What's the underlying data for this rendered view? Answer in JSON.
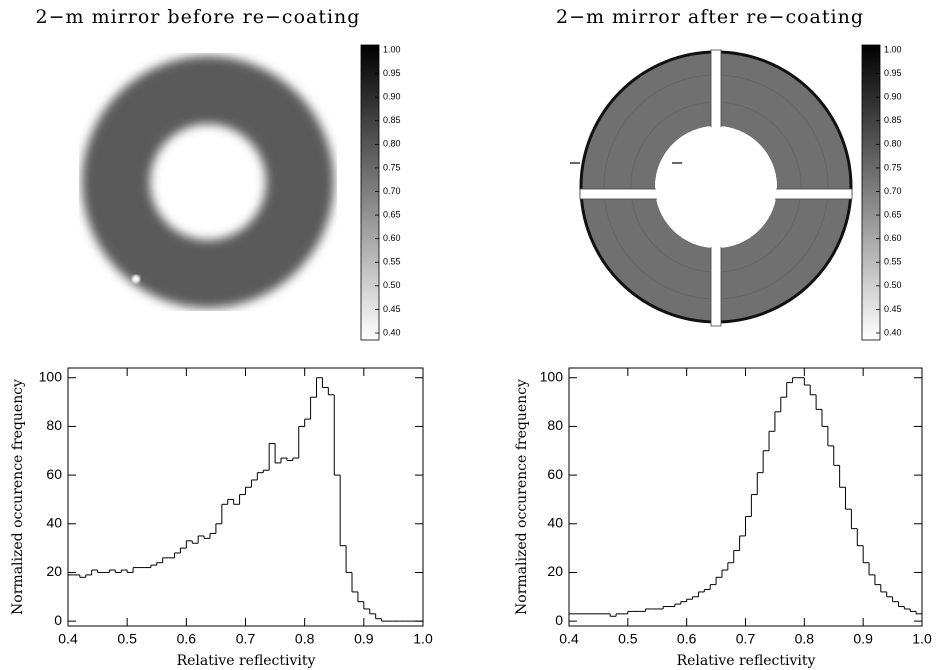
{
  "chart_data": [
    {
      "type": "image",
      "title": "2−m mirror before re−coating",
      "ylim": [
        0.4,
        1.0
      ],
      "yticks": [
        {
          "value": 1.0,
          "label": "1.00"
        },
        0.95,
        {
          "value": 0.9,
          "label": "0.90"
        },
        0.85,
        {
          "value": 0.8,
          "label": "0.80"
        },
        0.75,
        {
          "value": 0.7,
          "label": "0.70"
        },
        0.65,
        {
          "value": 0.6,
          "label": "0.60"
        },
        0.55,
        {
          "value": 0.5,
          "label": "0.50"
        },
        0.45,
        {
          "value": 0.4,
          "label": "0.40"
        }
      ]
    },
    {
      "type": "image",
      "title": "2−m mirror after re−coating",
      "ylim": [
        0.4,
        1.0
      ],
      "yticks": [
        {
          "value": 1.0,
          "label": "1.00"
        },
        0.95,
        {
          "value": 0.9,
          "label": "0.90"
        },
        0.85,
        {
          "value": 0.8,
          "label": "0.80"
        },
        0.75,
        {
          "value": 0.7,
          "label": "0.70"
        },
        0.65,
        {
          "value": 0.6,
          "label": "0.60"
        },
        0.55,
        {
          "value": 0.5,
          "label": "0.50"
        },
        0.45,
        {
          "value": 0.4,
          "label": "0.40"
        }
      ]
    },
    {
      "type": "histogram",
      "xlabel": "Relative reflectivity",
      "ylabel": "Normalized occurence frequency",
      "xlim": [
        0.4,
        1.0
      ],
      "ylim": [
        -2,
        104
      ],
      "xticks": [
        0.4,
        0.5,
        0.6,
        0.7,
        0.8,
        0.9,
        {
          "value": 1.0,
          "label": "1.0"
        }
      ],
      "yticks": [
        0,
        20,
        40,
        60,
        80,
        100
      ],
      "bins": [
        0.4,
        0.41,
        0.42,
        0.43,
        0.44,
        0.45,
        0.46,
        0.47,
        0.48,
        0.49,
        0.5,
        0.51,
        0.52,
        0.53,
        0.54,
        0.55,
        0.56,
        0.57,
        0.58,
        0.59,
        0.6,
        0.61,
        0.62,
        0.63,
        0.64,
        0.65,
        0.66,
        0.67,
        0.68,
        0.69,
        0.7,
        0.71,
        0.72,
        0.73,
        0.74,
        0.75,
        0.76,
        0.77,
        0.78,
        0.79,
        0.8,
        0.81,
        0.82,
        0.83,
        0.84,
        0.85,
        0.86,
        0.87,
        0.88,
        0.89,
        0.9,
        0.91,
        0.92,
        0.93,
        0.94,
        0.95,
        0.96,
        0.97,
        0.98,
        0.99,
        1.0
      ],
      "values": [
        19,
        19,
        18,
        19,
        21,
        20,
        20,
        21,
        20,
        21,
        20,
        22,
        22,
        22,
        23,
        24,
        26,
        26,
        28,
        30,
        33,
        32,
        35,
        34,
        36,
        40,
        48,
        50,
        48,
        52,
        55,
        58,
        61,
        62,
        73,
        65,
        67,
        66,
        67,
        80,
        83,
        92,
        100,
        96,
        93,
        60,
        31,
        20,
        12,
        8,
        5,
        3,
        1,
        0,
        0,
        0,
        0,
        0,
        0,
        0
      ]
    },
    {
      "type": "histogram",
      "xlabel": "Relative reflectivity",
      "ylabel": "Normalized occurence frequency",
      "xlim": [
        0.4,
        1.0
      ],
      "ylim": [
        -2,
        104
      ],
      "xticks": [
        0.4,
        0.5,
        0.6,
        0.7,
        0.8,
        0.9,
        {
          "value": 1.0,
          "label": "1.0"
        }
      ],
      "yticks": [
        0,
        20,
        40,
        60,
        80,
        100
      ],
      "bins": [
        0.4,
        0.41,
        0.42,
        0.43,
        0.44,
        0.45,
        0.46,
        0.47,
        0.48,
        0.49,
        0.5,
        0.51,
        0.52,
        0.53,
        0.54,
        0.55,
        0.56,
        0.57,
        0.58,
        0.59,
        0.6,
        0.61,
        0.62,
        0.63,
        0.64,
        0.65,
        0.66,
        0.67,
        0.68,
        0.69,
        0.7,
        0.71,
        0.72,
        0.73,
        0.74,
        0.75,
        0.76,
        0.77,
        0.78,
        0.79,
        0.8,
        0.81,
        0.82,
        0.83,
        0.84,
        0.85,
        0.86,
        0.87,
        0.88,
        0.89,
        0.9,
        0.91,
        0.92,
        0.93,
        0.94,
        0.95,
        0.96,
        0.97,
        0.98,
        0.99,
        1.0
      ],
      "values": [
        3,
        3,
        3,
        3,
        3,
        3,
        3,
        2,
        3,
        3,
        4,
        4,
        4,
        5,
        5,
        5,
        6,
        6,
        7,
        8,
        9,
        10,
        12,
        13,
        15,
        18,
        21,
        24,
        29,
        35,
        43,
        52,
        61,
        70,
        78,
        86,
        92,
        98,
        100,
        100,
        97,
        93,
        87,
        80,
        72,
        64,
        55,
        46,
        38,
        31,
        24,
        19,
        15,
        12,
        10,
        8,
        6,
        5,
        4,
        3
      ]
    }
  ]
}
